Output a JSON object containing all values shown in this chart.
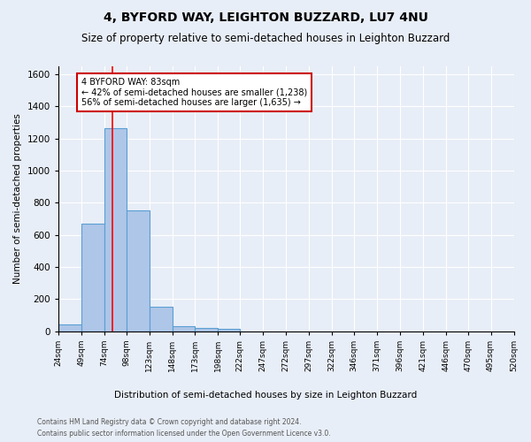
{
  "title": "4, BYFORD WAY, LEIGHTON BUZZARD, LU7 4NU",
  "subtitle": "Size of property relative to semi-detached houses in Leighton Buzzard",
  "xlabel": "Distribution of semi-detached houses by size in Leighton Buzzard",
  "ylabel": "Number of semi-detached properties",
  "footnote1": "Contains HM Land Registry data © Crown copyright and database right 2024.",
  "footnote2": "Contains public sector information licensed under the Open Government Licence v3.0.",
  "bin_labels": [
    "24sqm",
    "49sqm",
    "74sqm",
    "98sqm",
    "123sqm",
    "148sqm",
    "173sqm",
    "198sqm",
    "222sqm",
    "247sqm",
    "272sqm",
    "297sqm",
    "322sqm",
    "346sqm",
    "371sqm",
    "396sqm",
    "421sqm",
    "446sqm",
    "470sqm",
    "495sqm",
    "520sqm"
  ],
  "bar_values": [
    40,
    670,
    1265,
    750,
    150,
    30,
    20,
    15,
    0,
    0,
    0,
    0,
    0,
    0,
    0,
    0,
    0,
    0,
    0,
    0
  ],
  "bar_color": "#aec6e8",
  "bar_edge_color": "#5a9fd4",
  "red_line_x": 83,
  "annotation_text": "4 BYFORD WAY: 83sqm\n← 42% of semi-detached houses are smaller (1,238)\n56% of semi-detached houses are larger (1,635) →",
  "annotation_box_color": "#ffffff",
  "annotation_box_edge_color": "#cc0000",
  "ylim": [
    0,
    1650
  ],
  "background_color": "#e8eef7",
  "grid_color": "#ffffff",
  "title_fontsize": 10,
  "subtitle_fontsize": 8.5
}
